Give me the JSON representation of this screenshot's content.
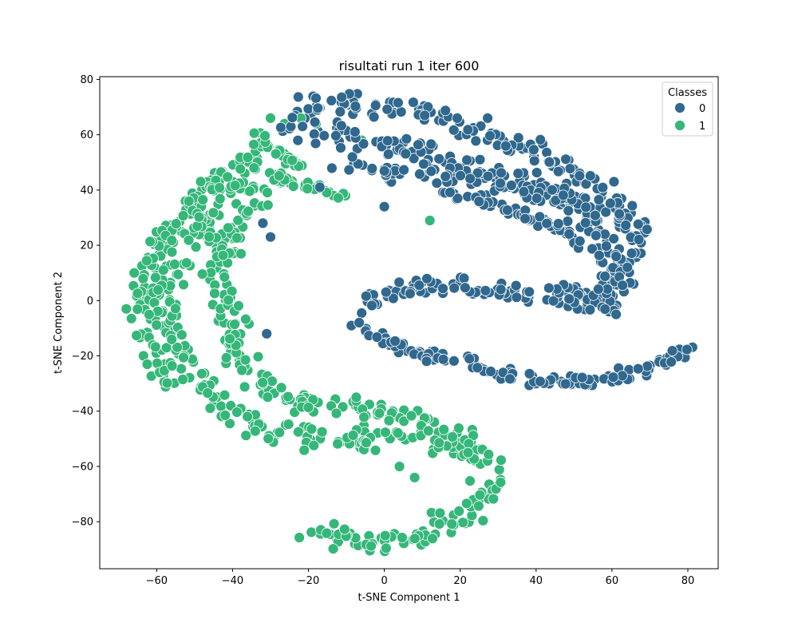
{
  "chart_data": {
    "type": "scatter",
    "title": "risultati run 1 iter 600",
    "xlabel": "t-SNE Component 1",
    "ylabel": "t-SNE Component 2",
    "xlim": [
      -75,
      88
    ],
    "ylim": [
      -97,
      81
    ],
    "xticks": [
      -60,
      -40,
      -20,
      0,
      20,
      40,
      60,
      80
    ],
    "yticks": [
      -80,
      -60,
      -40,
      -20,
      0,
      20,
      40,
      60,
      80
    ],
    "grid": false,
    "legend": {
      "title": "Classes",
      "position": "top-right"
    },
    "series": [
      {
        "name": "0",
        "color": "#30688e",
        "paths": [
          {
            "points": [
              [
                -25,
                70
              ],
              [
                -15,
                71
              ],
              [
                -5,
                71
              ],
              [
                5,
                69
              ],
              [
                15,
                66
              ],
              [
                25,
                62
              ],
              [
                35,
                57
              ],
              [
                45,
                50
              ],
              [
                55,
                42
              ],
              [
                62,
                35
              ],
              [
                66,
                25
              ],
              [
                64,
                15
              ],
              [
                62,
                5
              ],
              [
                57,
                -1
              ]
            ],
            "width": 8
          },
          {
            "points": [
              [
                -27,
                63
              ],
              [
                -15,
                61
              ],
              [
                -5,
                58
              ],
              [
                5,
                55
              ],
              [
                15,
                52
              ],
              [
                25,
                48
              ],
              [
                35,
                44
              ],
              [
                45,
                40
              ],
              [
                55,
                35
              ],
              [
                62,
                29
              ]
            ],
            "width": 9
          },
          {
            "points": [
              [
                -10,
                50
              ],
              [
                -2,
                47
              ],
              [
                8,
                46
              ],
              [
                18,
                46
              ],
              [
                28,
                44
              ],
              [
                38,
                40
              ],
              [
                48,
                35
              ],
              [
                56,
                26
              ],
              [
                60,
                18
              ],
              [
                60,
                10
              ],
              [
                57,
                2
              ],
              [
                52,
                -2
              ]
            ],
            "width": 8
          },
          {
            "points": [
              [
                16,
                38
              ],
              [
                22,
                38
              ],
              [
                28,
                36
              ],
              [
                38,
                30
              ],
              [
                46,
                26
              ],
              [
                52,
                20
              ]
            ],
            "width": 4
          },
          {
            "points": [
              [
                -8,
                -3
              ],
              [
                -2,
                1
              ],
              [
                6,
                4
              ],
              [
                16,
                5
              ],
              [
                26,
                4
              ],
              [
                36,
                2
              ],
              [
                46,
                1
              ],
              [
                54,
                -2
              ]
            ],
            "width": 7
          },
          {
            "points": [
              [
                46,
                6
              ],
              [
                52,
                2
              ],
              [
                58,
                -2
              ],
              [
                62,
                -6
              ]
            ],
            "width": 4
          },
          {
            "points": [
              [
                -7,
                -8
              ],
              [
                -3,
                -12
              ],
              [
                3,
                -16
              ],
              [
                10,
                -19
              ],
              [
                20,
                -22
              ],
              [
                30,
                -26
              ],
              [
                40,
                -29
              ],
              [
                50,
                -30
              ],
              [
                60,
                -28
              ],
              [
                66,
                -26
              ],
              [
                74,
                -22
              ],
              [
                80,
                -17
              ]
            ],
            "width": 5
          }
        ]
      },
      {
        "name": "1",
        "color": "#35b779",
        "paths": [
          {
            "points": [
              [
                -30,
                62
              ],
              [
                -34,
                54
              ],
              [
                -38,
                50
              ],
              [
                -44,
                44
              ],
              [
                -50,
                36
              ],
              [
                -56,
                26
              ],
              [
                -62,
                14
              ],
              [
                -64,
                2
              ],
              [
                -63,
                -10
              ],
              [
                -60,
                -20
              ],
              [
                -56,
                -30
              ]
            ],
            "width": 7
          },
          {
            "points": [
              [
                -36,
                46
              ],
              [
                -40,
                40
              ],
              [
                -46,
                32
              ],
              [
                -52,
                24
              ],
              [
                -56,
                14
              ],
              [
                -58,
                4
              ],
              [
                -58,
                -6
              ],
              [
                -55,
                -16
              ],
              [
                -50,
                -26
              ],
              [
                -45,
                -34
              ],
              [
                -38,
                -42
              ],
              [
                -30,
                -48
              ],
              [
                -18,
                -50
              ],
              [
                -5,
                -50
              ],
              [
                8,
                -50
              ],
              [
                18,
                -52
              ],
              [
                25,
                -56
              ],
              [
                28,
                -62
              ],
              [
                26,
                -70
              ],
              [
                20,
                -78
              ],
              [
                12,
                -84
              ],
              [
                2,
                -87
              ],
              [
                -10,
                -86
              ],
              [
                -22,
                -84
              ]
            ],
            "width": 9
          },
          {
            "points": [
              [
                -26,
                44
              ],
              [
                -32,
                38
              ],
              [
                -38,
                30
              ],
              [
                -42,
                22
              ],
              [
                -44,
                12
              ],
              [
                -42,
                2
              ],
              [
                -40,
                -6
              ],
              [
                -40,
                -14
              ],
              [
                -38,
                -22
              ],
              [
                -32,
                -32
              ],
              [
                -24,
                -36
              ],
              [
                -12,
                -38
              ],
              [
                -2,
                -40
              ],
              [
                10,
                -44
              ],
              [
                20,
                -48
              ],
              [
                26,
                -54
              ]
            ],
            "width": 8
          },
          {
            "points": [
              [
                -38,
                16
              ],
              [
                -42,
                20
              ],
              [
                -46,
                24
              ],
              [
                -50,
                26
              ]
            ],
            "width": 4
          },
          {
            "points": [
              [
                -28,
                44
              ],
              [
                -22,
                42
              ],
              [
                -16,
                40
              ],
              [
                -10,
                38
              ]
            ],
            "width": 3
          },
          {
            "points": [
              [
                -32,
                58
              ],
              [
                -28,
                54
              ],
              [
                -24,
                50
              ],
              [
                -20,
                48
              ]
            ],
            "width": 3
          }
        ]
      }
    ],
    "outliers": [
      {
        "cls": "1",
        "points": [
          [
            -6,
            58
          ],
          [
            -18,
            64
          ],
          [
            -22,
            66
          ],
          [
            -30,
            66
          ],
          [
            -68,
            -3
          ],
          [
            12,
            29
          ],
          [
            4,
            -60
          ],
          [
            8,
            -64
          ]
        ]
      },
      {
        "cls": "0",
        "points": [
          [
            -32,
            28
          ],
          [
            -30,
            23
          ],
          [
            -31,
            -12
          ],
          [
            0,
            34
          ],
          [
            -17,
            41
          ]
        ]
      }
    ]
  }
}
